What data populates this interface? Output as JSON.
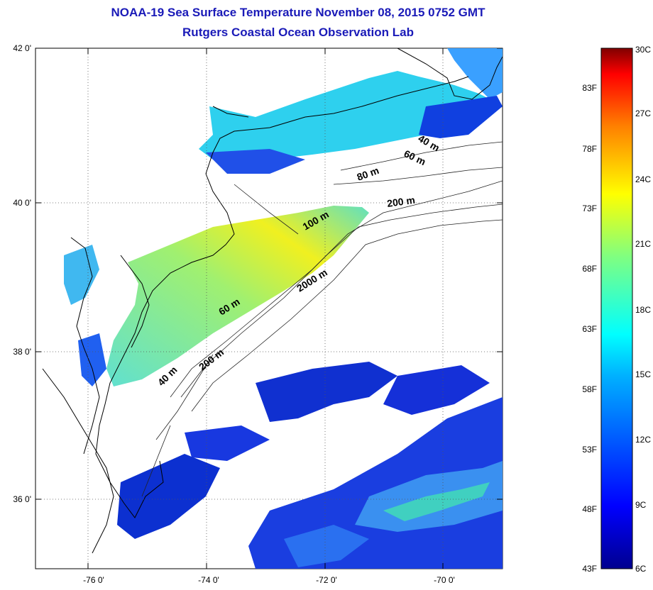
{
  "title": "NOAA-19 Sea Surface Temperature November 08, 2015 0752 GMT",
  "subtitle": "Rutgers Coastal Ocean Observation Lab",
  "map": {
    "lat_ticks": [
      "42 0'",
      "40 0'",
      "38 0'",
      "36 0'"
    ],
    "lon_ticks": [
      "-76 0'",
      "-74 0'",
      "-72 0'",
      "-70 0'"
    ],
    "contour_labels": [
      "40 m",
      "60 m",
      "80 m",
      "200 m",
      "100 m",
      "60 m",
      "2000 m",
      "200 m",
      "40 m"
    ]
  },
  "colorbar": {
    "fahrenheit_labels": [
      "83F",
      "78F",
      "73F",
      "68F",
      "63F",
      "58F",
      "53F",
      "48F",
      "43F"
    ],
    "celsius_labels": [
      "30C",
      "27C",
      "24C",
      "21C",
      "18C",
      "15C",
      "12C",
      "9C",
      "6C"
    ],
    "colors": [
      "#00008f",
      "#0000ff",
      "#0080ff",
      "#00ffff",
      "#80ff80",
      "#ffff00",
      "#ff8000",
      "#ff0000",
      "#800000"
    ]
  }
}
